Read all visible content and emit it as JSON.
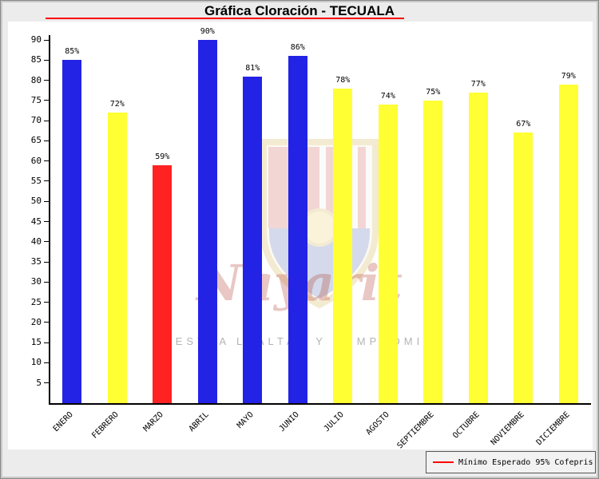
{
  "header": {
    "title": "Gráfica Cloración - TECUALA"
  },
  "colors": {
    "background": "#ececec",
    "plot_background": "#ffffff",
    "title_underline": "#ff0000",
    "axis": "#000000",
    "bar_blue": "#2323e6",
    "bar_yellow": "#ffff33",
    "bar_red": "#ff2222",
    "legend_line": "#ff0000"
  },
  "chart_data": {
    "type": "bar",
    "title": "Gráfica Cloración - TECUALA",
    "categories": [
      "ENERO",
      "FEBRERO",
      "MARZO",
      "ABRIL",
      "MAYO",
      "JUNIO",
      "JULIO",
      "AGOSTO",
      "SEPTIEMBRE",
      "OCTUBRE",
      "NOVIEMBRE",
      "DICIEMBRE"
    ],
    "values": [
      85,
      72,
      59,
      90,
      81,
      86,
      78,
      74,
      75,
      77,
      67,
      79
    ],
    "bar_colors": [
      "#2323e6",
      "#ffff33",
      "#ff2222",
      "#2323e6",
      "#2323e6",
      "#2323e6",
      "#ffff33",
      "#ffff33",
      "#ffff33",
      "#ffff33",
      "#ffff33",
      "#ffff33"
    ],
    "value_suffix": "%",
    "y_ticks": [
      5,
      10,
      15,
      20,
      25,
      30,
      35,
      40,
      45,
      50,
      55,
      60,
      65,
      70,
      75,
      80,
      85,
      90
    ],
    "ylim": [
      0,
      91
    ],
    "grid": false,
    "xlabel": "",
    "ylabel": "",
    "legend": {
      "label": "Mínimo Esperado 95% Cofepris",
      "line_color": "#ff0000",
      "position": "bottom-right"
    }
  },
  "watermark": {
    "script_text": "Nayarit",
    "motto": "NUESTRA LEALTAD Y COMPROMISO"
  }
}
